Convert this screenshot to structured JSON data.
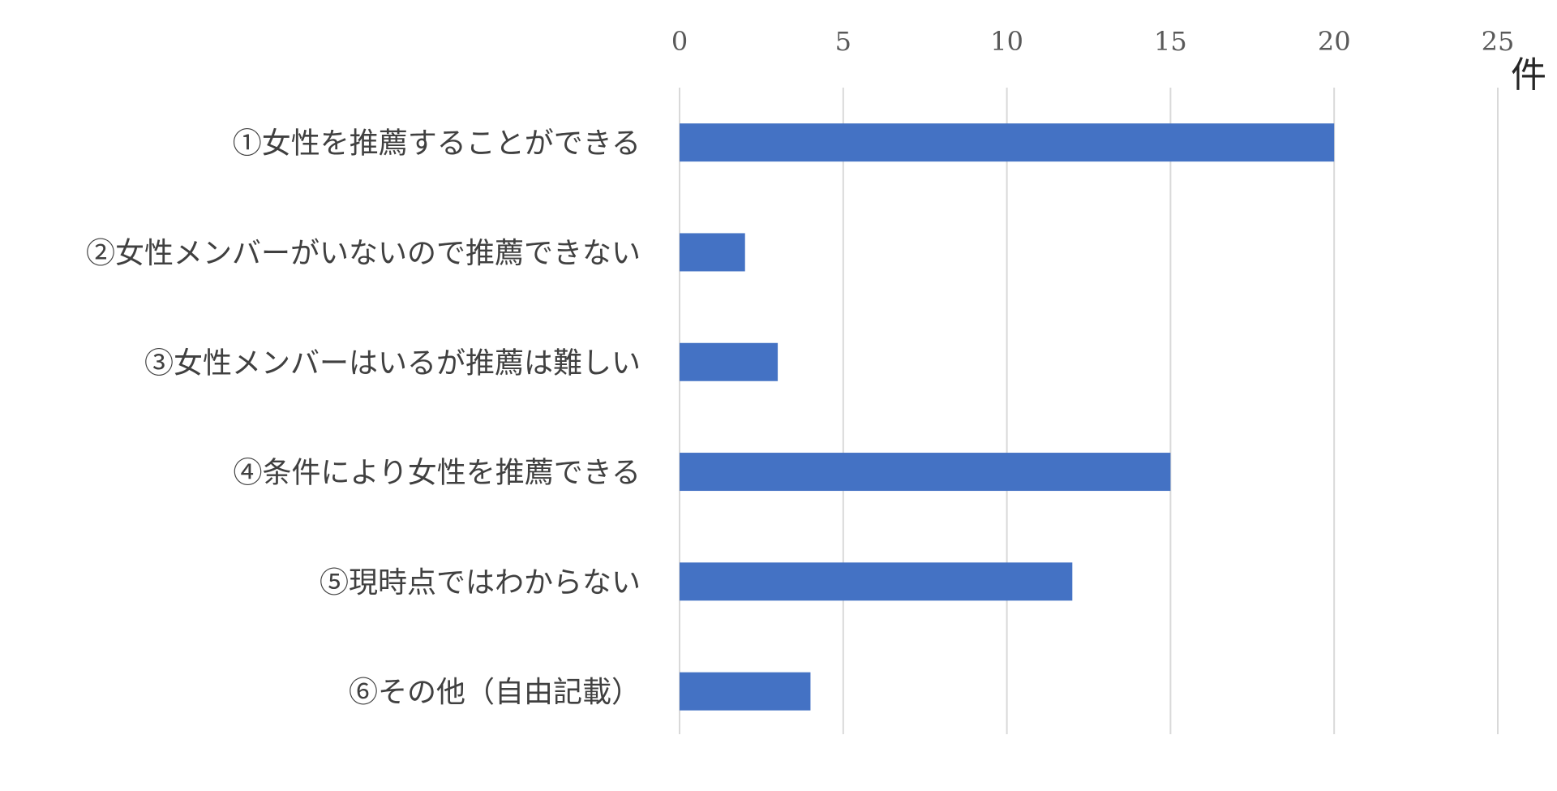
{
  "chart_data": {
    "type": "bar",
    "orientation": "horizontal",
    "categories": [
      "①女性を推薦することができる",
      "②女性メンバーがいないので推薦できない",
      "③女性メンバーはいるが推薦は難しい",
      "④条件により女性を推薦できる",
      "⑤現時点ではわからない",
      "⑥その他（自由記載）"
    ],
    "values": [
      20,
      2,
      3,
      15,
      12,
      4
    ],
    "xlim": [
      0,
      25
    ],
    "xticks": [
      0,
      5,
      10,
      15,
      20,
      25
    ],
    "x_unit": "件",
    "title": "",
    "xlabel": "",
    "ylabel": "",
    "grid": "vertical",
    "axis_position": "top",
    "bar_color": "#4472C4",
    "grid_color": "#D9D9D9"
  }
}
